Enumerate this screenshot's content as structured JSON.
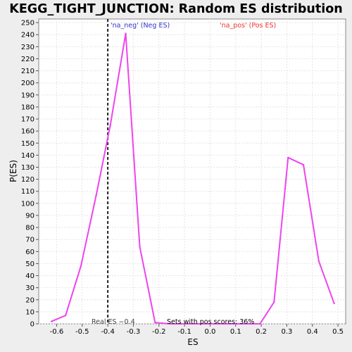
{
  "chart_data": {
    "type": "line",
    "title": "KEGG_TIGHT_JUNCTION: Random ES distribution",
    "xlabel": "ES",
    "ylabel": "P(ES)",
    "xlim": [
      -0.67,
      0.53
    ],
    "ylim": [
      0,
      253
    ],
    "x_ticks": [
      -0.6,
      -0.5,
      -0.4,
      -0.3,
      -0.2,
      -0.1,
      0.0,
      0.1,
      0.2,
      0.3,
      0.4,
      0.5
    ],
    "x_tick_labels": [
      "-0.6",
      "-0.5",
      "-0.4",
      "-0.3",
      "-0.2",
      "-0.1",
      "0.0",
      "0.1",
      "0.2",
      "0.3",
      "0.4",
      "0.5"
    ],
    "y_ticks": [
      0,
      10,
      20,
      30,
      40,
      50,
      60,
      70,
      80,
      90,
      100,
      110,
      120,
      130,
      140,
      150,
      160,
      170,
      180,
      190,
      200,
      210,
      220,
      230,
      240,
      250
    ],
    "y_tick_labels": [
      "0",
      "10",
      "20",
      "30",
      "40",
      "50",
      "60",
      "70",
      "80",
      "90",
      "100",
      "110",
      "120",
      "130",
      "140",
      "150",
      "160",
      "170",
      "180",
      "190",
      "200",
      "210",
      "220",
      "230",
      "240",
      "250"
    ],
    "grid": true,
    "series": [
      {
        "color": "#ee44ee",
        "x": [
          -0.62,
          -0.565,
          -0.505,
          -0.445,
          -0.39,
          -0.33,
          -0.275,
          -0.215,
          -0.155,
          0.195,
          0.25,
          0.305,
          0.365,
          0.425,
          0.485
        ],
        "y": [
          2,
          7,
          48,
          107,
          165,
          241,
          64,
          1,
          0,
          0,
          18,
          138,
          132,
          52,
          17
        ]
      }
    ],
    "real_es": -0.4,
    "real_es_label": "Real ES −0.4",
    "neg_label": "'na_neg' (Neg ES)",
    "pos_label": "'na_pos' (Pos ES)",
    "pos_scores_label": "Sets with pos scores: 36%",
    "colors": {
      "line": "#ee44ee",
      "neg_label": "#3333cc",
      "pos_label": "#ee3333",
      "real_es_line": "#222222",
      "grid": "#e4e4e4",
      "plot_bg": "#ffffff",
      "page_bg": "#eeeeee"
    }
  }
}
